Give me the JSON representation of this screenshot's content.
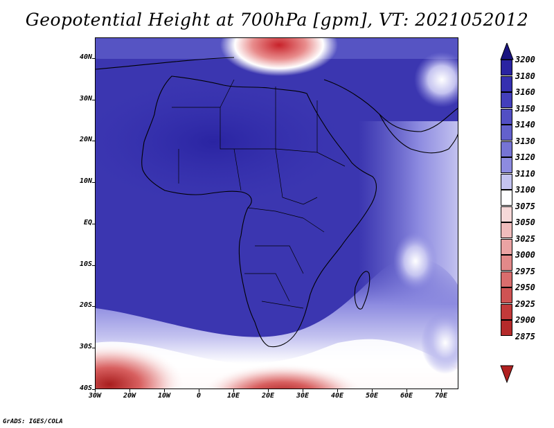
{
  "title": "Geopotential Height at 700hPa [gpm], VT: 2021052012",
  "credit": "GrADS: IGES/COLA",
  "map": {
    "lon_range": [
      -30,
      75
    ],
    "lat_range": [
      -40,
      45
    ],
    "lat_labels": [
      "40N",
      "30N",
      "20N",
      "10N",
      "EQ",
      "10S",
      "20S",
      "30S",
      "40S"
    ],
    "lat_values": [
      40,
      30,
      20,
      10,
      0,
      -10,
      -20,
      -30,
      -40
    ],
    "lon_labels": [
      "30W",
      "20W",
      "10W",
      "0",
      "10E",
      "20E",
      "30E",
      "40E",
      "50E",
      "60E",
      "70E"
    ],
    "lon_values": [
      -30,
      -20,
      -10,
      0,
      10,
      20,
      30,
      40,
      50,
      60,
      70
    ],
    "field": "Geopotential Height at 700hPa",
    "units": "gpm"
  },
  "colorbar": {
    "levels": [
      "3200",
      "3180",
      "3160",
      "3150",
      "3140",
      "3130",
      "3120",
      "3110",
      "3100",
      "3075",
      "3050",
      "3025",
      "3000",
      "2975",
      "2950",
      "2925",
      "2900",
      "2875"
    ],
    "colors": [
      "#1b1787",
      "#2a24a2",
      "#3530b0",
      "#433fbc",
      "#524fc4",
      "#6361cc",
      "#7674d4",
      "#8d8be0",
      "#c4c3f0",
      "#ffffff",
      "#f6d8d8",
      "#f0bcbc",
      "#eaa3a3",
      "#e28989",
      "#d96d6d",
      "#ce5353",
      "#c23a3a",
      "#b52a2a"
    ],
    "top_arrow_color": "#1a1480",
    "bottom_arrow_color": "#b02020"
  }
}
